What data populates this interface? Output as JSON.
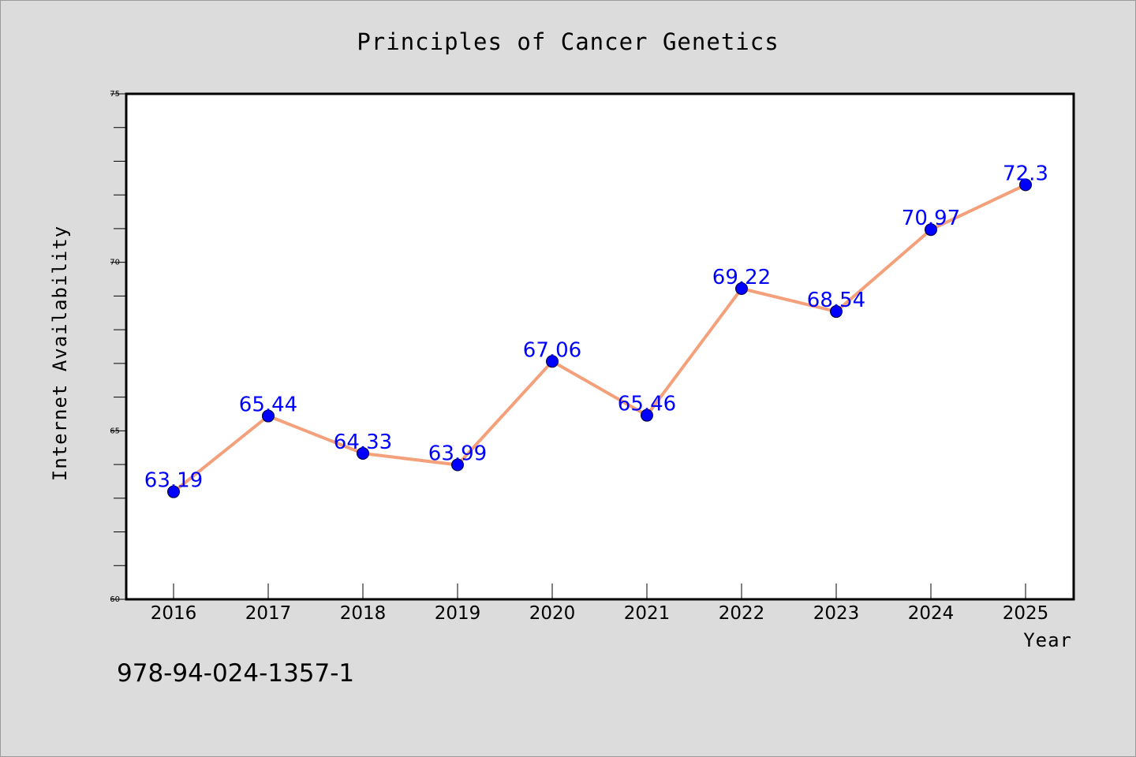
{
  "chart_data": {
    "type": "line",
    "title": "Principles of Cancer Genetics",
    "xlabel": "Year",
    "ylabel": "Internet Availability",
    "categories": [
      "2016",
      "2017",
      "2018",
      "2019",
      "2020",
      "2021",
      "2022",
      "2023",
      "2024",
      "2025"
    ],
    "values": [
      63.19,
      65.44,
      64.33,
      63.99,
      67.06,
      65.46,
      69.22,
      68.54,
      70.97,
      72.3
    ],
    "data_labels": [
      "63.19",
      "65.44",
      "64.33",
      "63.99",
      "67.06",
      "65.46",
      "69.22",
      "68.54",
      "70.97",
      "72.3"
    ],
    "ylim": [
      60,
      75
    ],
    "yticks": [
      60,
      65,
      70,
      75
    ],
    "ytick_labels": [
      "60",
      "65",
      "70",
      "75"
    ],
    "grid": false,
    "legend": "none",
    "colors": {
      "line": "#f4a07a",
      "marker": "#0000ff",
      "data_label": "#0000ff",
      "plot_background": "#ffffff",
      "figure_background": "#dcdcdc"
    }
  },
  "footer": {
    "isbn": "978-94-024-1357-1"
  }
}
